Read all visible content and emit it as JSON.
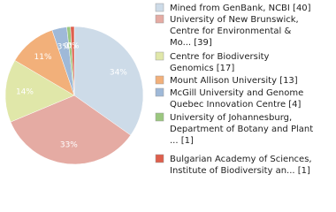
{
  "chart_data": {
    "type": "pie",
    "values": [
      40,
      39,
      17,
      13,
      4,
      1,
      1
    ],
    "slice_labels": [
      {
        "value": 34,
        "label": "34%"
      },
      {
        "value": 33,
        "label": "33%"
      },
      {
        "value": 14,
        "label": "14%"
      },
      {
        "value": 11,
        "label": "11%"
      },
      {
        "value": 3,
        "label": "3%"
      },
      {
        "value": 0,
        "label": "0%"
      },
      {
        "value": 0,
        "label": "0%"
      }
    ],
    "colors": [
      "#cddbe8",
      "#e5aba3",
      "#e0e7a9",
      "#f2b07a",
      "#9fb9d8",
      "#9bc77f",
      "#de5f4d"
    ],
    "legend": [
      [
        "Mined from GenBank, NCBI [40]"
      ],
      [
        "University of New Brunswick,",
        "Centre for Environmental &",
        "Mo... [39]"
      ],
      [
        "Centre for Biodiversity",
        "Genomics [17]"
      ],
      [
        "Mount Allison University [13]"
      ],
      [
        "McGill University and Genome",
        "Quebec Innovation Centre [4]"
      ],
      [
        "University of Johannesburg,",
        "Department of Botany and Plant",
        "... [1]"
      ],
      [
        "Bulgarian Academy of Sciences,",
        "Institute of Biodiversity an... [1]"
      ]
    ]
  }
}
